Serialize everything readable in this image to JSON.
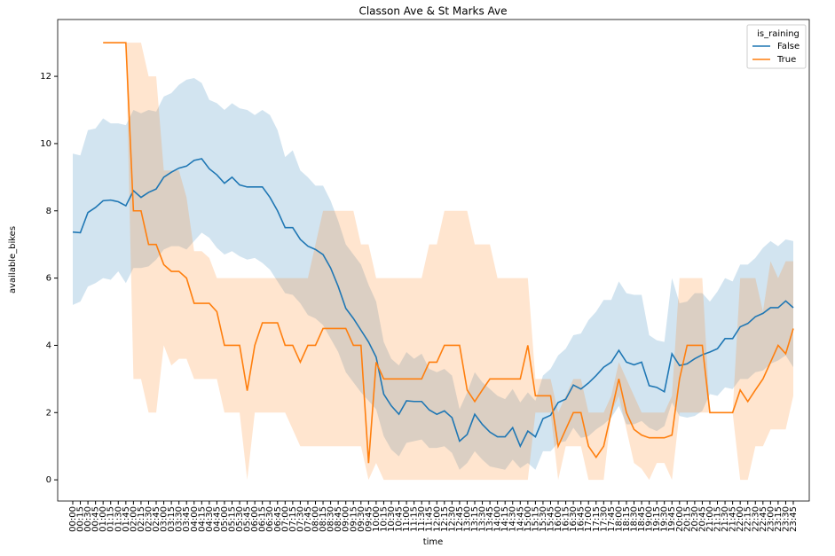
{
  "chart_data": {
    "type": "line",
    "title": "Classon Ave & St Marks Ave",
    "x_label": "time",
    "y_label": "available_bikes",
    "legend_title": "is_raining",
    "categories": [
      "00:00",
      "00:15",
      "00:30",
      "00:45",
      "01:00",
      "01:15",
      "01:30",
      "01:45",
      "02:00",
      "02:15",
      "02:30",
      "02:45",
      "03:00",
      "03:15",
      "03:30",
      "03:45",
      "04:00",
      "04:15",
      "04:30",
      "04:45",
      "05:00",
      "05:15",
      "05:30",
      "05:45",
      "06:00",
      "06:15",
      "06:30",
      "06:45",
      "07:00",
      "07:15",
      "07:30",
      "07:45",
      "08:00",
      "08:15",
      "08:30",
      "08:45",
      "09:00",
      "09:15",
      "09:30",
      "09:45",
      "10:00",
      "10:15",
      "10:30",
      "10:45",
      "11:00",
      "11:15",
      "11:30",
      "11:45",
      "12:00",
      "12:15",
      "12:30",
      "12:45",
      "13:00",
      "13:15",
      "13:30",
      "13:45",
      "14:00",
      "14:15",
      "14:30",
      "14:45",
      "15:00",
      "15:15",
      "15:30",
      "15:45",
      "16:00",
      "16:15",
      "16:30",
      "16:45",
      "17:00",
      "17:15",
      "17:30",
      "17:45",
      "18:00",
      "18:15",
      "18:30",
      "18:45",
      "19:00",
      "19:15",
      "19:30",
      "19:45",
      "20:00",
      "20:15",
      "20:30",
      "20:45",
      "21:00",
      "21:15",
      "21:30",
      "21:45",
      "22:00",
      "22:15",
      "22:30",
      "22:45",
      "23:00",
      "23:15",
      "23:30",
      "23:45"
    ],
    "series": [
      {
        "name": "False",
        "color": "#1f77b4",
        "values": [
          7.37,
          7.35,
          7.95,
          8.1,
          8.3,
          8.32,
          8.27,
          8.15,
          8.6,
          8.4,
          8.55,
          8.65,
          9.0,
          9.15,
          9.27,
          9.33,
          9.5,
          9.55,
          9.25,
          9.07,
          8.82,
          9.0,
          8.77,
          8.71,
          8.71,
          8.71,
          8.4,
          8.0,
          7.5,
          7.5,
          7.15,
          6.95,
          6.85,
          6.7,
          6.3,
          5.75,
          5.1,
          4.8,
          4.45,
          4.1,
          3.65,
          2.55,
          2.2,
          1.95,
          2.35,
          2.33,
          2.33,
          2.08,
          1.95,
          2.05,
          1.85,
          1.15,
          1.35,
          1.95,
          1.65,
          1.42,
          1.28,
          1.28,
          1.55,
          1.0,
          1.45,
          1.28,
          1.82,
          1.92,
          2.3,
          2.4,
          2.82,
          2.7,
          2.88,
          3.1,
          3.35,
          3.5,
          3.85,
          3.5,
          3.42,
          3.5,
          2.8,
          2.75,
          2.62,
          3.75,
          3.4,
          3.45,
          3.6,
          3.72,
          3.8,
          3.9,
          4.2,
          4.2,
          4.55,
          4.65,
          4.85,
          4.95,
          5.12,
          5.12,
          5.32,
          5.12
        ],
        "lower": [
          5.2,
          5.3,
          5.75,
          5.85,
          6.0,
          5.95,
          6.2,
          5.85,
          6.3,
          6.3,
          6.35,
          6.55,
          6.85,
          6.95,
          6.95,
          6.85,
          7.1,
          7.35,
          7.2,
          6.9,
          6.7,
          6.8,
          6.65,
          6.55,
          6.6,
          6.45,
          6.25,
          5.9,
          5.55,
          5.5,
          5.25,
          4.9,
          4.8,
          4.6,
          4.2,
          3.8,
          3.2,
          2.9,
          2.6,
          2.35,
          2.1,
          1.3,
          0.9,
          0.7,
          1.1,
          1.15,
          1.2,
          0.95,
          0.95,
          1.0,
          0.8,
          0.3,
          0.5,
          0.85,
          0.6,
          0.4,
          0.35,
          0.3,
          0.6,
          0.35,
          0.5,
          0.3,
          0.85,
          0.85,
          1.1,
          1.15,
          1.55,
          1.25,
          1.3,
          1.5,
          1.65,
          1.85,
          2.2,
          1.65,
          1.65,
          1.75,
          1.55,
          1.45,
          1.6,
          2.3,
          1.9,
          1.85,
          1.9,
          2.05,
          2.55,
          2.5,
          2.75,
          2.7,
          3.0,
          3.0,
          3.2,
          3.25,
          3.45,
          3.55,
          3.7,
          3.35
        ],
        "upper": [
          9.7,
          9.65,
          10.4,
          10.45,
          10.75,
          10.6,
          10.6,
          10.55,
          11.0,
          10.9,
          11.0,
          10.95,
          11.4,
          11.5,
          11.75,
          11.9,
          11.95,
          11.8,
          11.3,
          11.2,
          11.0,
          11.2,
          11.05,
          11.0,
          10.85,
          11.0,
          10.85,
          10.4,
          9.6,
          9.8,
          9.2,
          9.0,
          8.75,
          8.75,
          8.3,
          7.7,
          7.0,
          6.7,
          6.4,
          5.8,
          5.3,
          4.1,
          3.6,
          3.4,
          3.8,
          3.6,
          3.75,
          3.3,
          3.2,
          3.3,
          3.1,
          2.1,
          2.6,
          3.2,
          2.9,
          2.7,
          2.5,
          2.4,
          2.7,
          2.3,
          2.6,
          2.35,
          3.1,
          3.3,
          3.7,
          3.9,
          4.3,
          4.35,
          4.75,
          5.0,
          5.35,
          5.35,
          5.9,
          5.55,
          5.5,
          5.5,
          4.3,
          4.15,
          4.1,
          6.0,
          5.25,
          5.3,
          5.55,
          5.55,
          5.3,
          5.6,
          6.0,
          5.9,
          6.4,
          6.4,
          6.6,
          6.9,
          7.1,
          6.95,
          7.15,
          7.1
        ]
      },
      {
        "name": "True",
        "color": "#ff7f0e",
        "values": [
          null,
          null,
          null,
          null,
          13,
          13,
          13,
          13,
          8,
          8,
          7,
          7,
          6.4,
          6.2,
          6.2,
          6.0,
          5.25,
          5.25,
          5.25,
          5.0,
          4.0,
          4.0,
          4.0,
          2.65,
          4.0,
          4.67,
          4.67,
          4.67,
          4.0,
          4.0,
          3.5,
          4.0,
          4.0,
          4.5,
          4.5,
          4.5,
          4.5,
          4.0,
          4.0,
          0.5,
          3.5,
          3.0,
          3.0,
          3.0,
          3.0,
          3.0,
          3.0,
          3.5,
          3.5,
          4.0,
          4.0,
          4.0,
          2.67,
          2.33,
          2.67,
          3.0,
          3.0,
          3.0,
          3.0,
          3.0,
          4.0,
          2.5,
          2.5,
          2.5,
          1.0,
          1.5,
          2.0,
          2.0,
          1.0,
          0.67,
          1.0,
          2.0,
          3.0,
          2.0,
          1.5,
          1.33,
          1.25,
          1.25,
          1.25,
          1.33,
          3.0,
          4.0,
          4.0,
          4.0,
          2.0,
          2.0,
          2.0,
          2.0,
          2.67,
          2.33,
          2.67,
          3.0,
          3.5,
          4.0,
          3.75,
          4.5
        ],
        "lower": [
          null,
          null,
          null,
          null,
          13,
          13,
          13,
          13,
          3.0,
          3.0,
          2.0,
          2.0,
          4.0,
          3.4,
          3.6,
          3.6,
          3.0,
          3.0,
          3.0,
          3.0,
          2.0,
          2.0,
          2.0,
          0.0,
          2.0,
          2.0,
          2.0,
          2.0,
          2.0,
          1.5,
          1.0,
          1.0,
          1.0,
          1.0,
          1.0,
          1.0,
          1.0,
          1.0,
          1.0,
          0.0,
          0.5,
          0,
          0,
          0,
          0,
          0,
          0,
          0,
          0,
          0,
          0,
          0,
          0,
          0,
          0,
          0,
          0,
          0,
          0,
          0,
          0,
          2.0,
          2.0,
          2.0,
          0.0,
          1.0,
          1.0,
          1.0,
          0.0,
          0.0,
          0.0,
          2.0,
          2.5,
          1.5,
          0.5,
          0.33,
          0.0,
          0.5,
          0.5,
          0.0,
          2.0,
          2.0,
          2.0,
          2.0,
          2.0,
          2.0,
          2.0,
          2.0,
          0.0,
          0.0,
          1.0,
          1.0,
          1.5,
          1.5,
          1.5,
          2.5
        ],
        "upper": [
          null,
          null,
          null,
          null,
          13,
          13,
          13,
          13,
          13,
          13,
          12,
          12,
          9.2,
          9.2,
          9.2,
          8.4,
          6.8,
          6.8,
          6.6,
          6.0,
          6.0,
          6.0,
          6.0,
          6.0,
          6.0,
          6.0,
          6.0,
          6.0,
          6.0,
          6.0,
          6,
          6,
          7,
          8,
          8,
          8,
          8,
          8,
          7,
          7,
          6.0,
          6,
          6,
          6,
          6,
          6,
          6,
          7,
          7,
          8,
          8,
          8,
          8,
          7,
          7,
          7,
          6,
          6,
          6,
          6,
          6,
          3.0,
          3.0,
          3.0,
          2.0,
          2.5,
          3.0,
          3.0,
          2.0,
          2.0,
          2.0,
          2.5,
          3.5,
          3.0,
          2.5,
          2.0,
          2.0,
          2.0,
          2.0,
          2.5,
          6.0,
          6.0,
          6.0,
          6.0,
          2.0,
          2.0,
          2.0,
          2.0,
          6.0,
          6.0,
          6.0,
          5.0,
          6.5,
          6.0,
          6.5,
          6.5
        ]
      }
    ],
    "ylim": [
      -0.63,
      13.69
    ],
    "yticks": [
      0,
      2,
      4,
      6,
      8,
      10,
      12
    ],
    "legend_position": "upper right"
  }
}
